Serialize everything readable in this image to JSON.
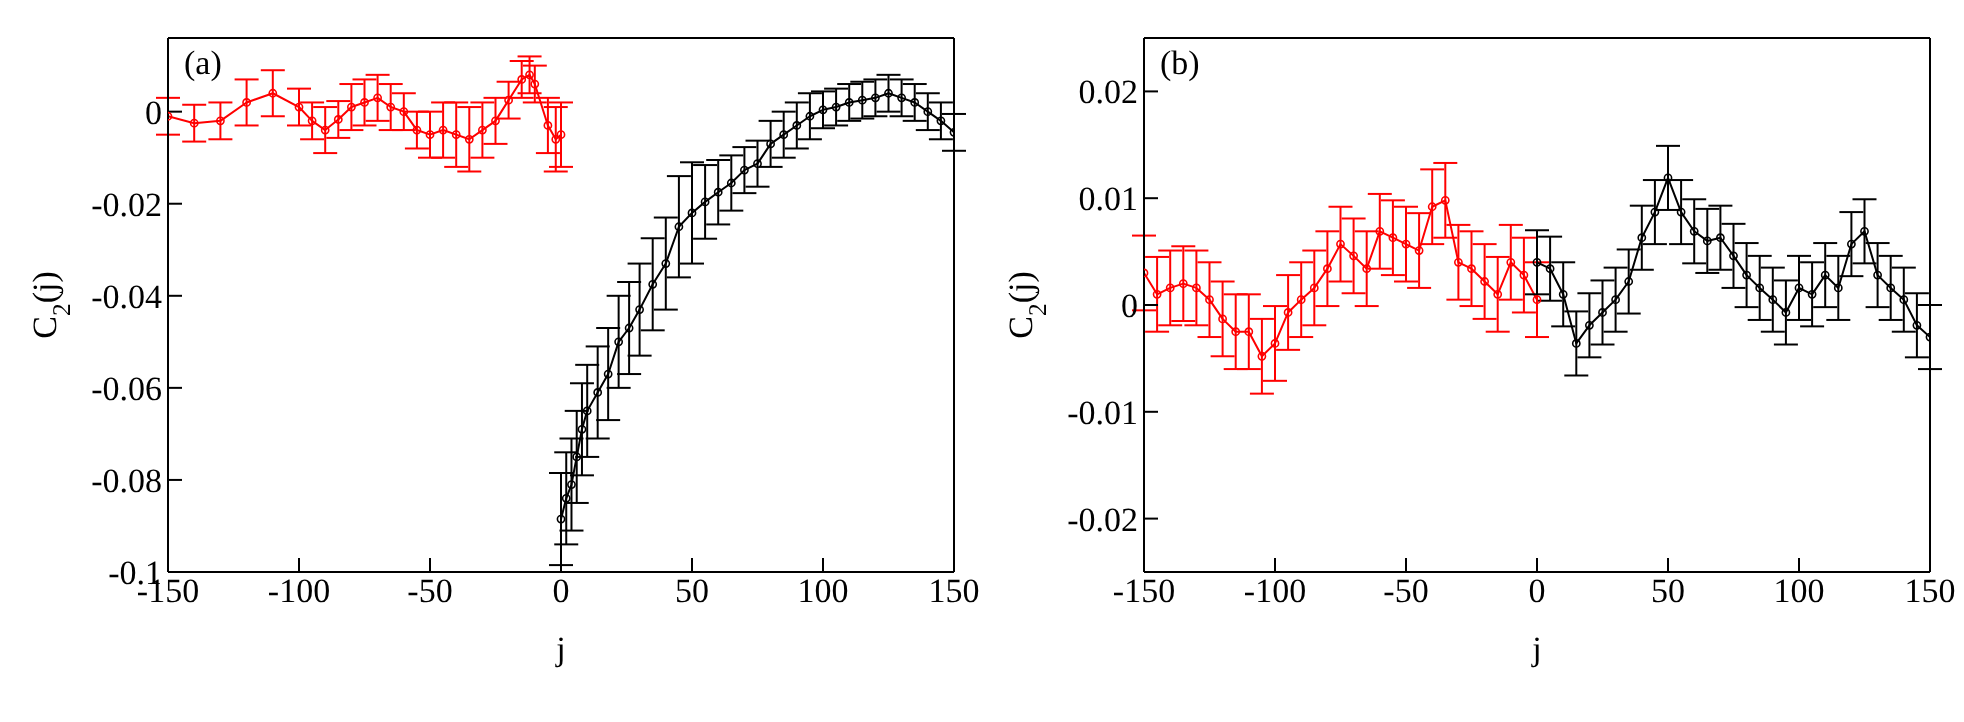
{
  "chart_data": [
    {
      "type": "line",
      "xlabel": "j",
      "ylabel": "C$_{2}$(j)",
      "annotations": [
        "(a)"
      ],
      "xlim": [
        -150,
        150
      ],
      "xticks": [
        -150,
        -100,
        -50,
        0,
        50,
        100,
        150
      ],
      "ylim": [
        -0.1,
        0.016
      ],
      "yticks": [
        -0.1,
        -0.08,
        -0.06,
        -0.04,
        -0.02,
        0
      ],
      "marker": "circle",
      "line_style": "solid",
      "series": [
        {
          "color": "#ff0000",
          "x": [
            -150,
            -140,
            -130,
            -120,
            -110,
            -100,
            -95,
            -90,
            -85,
            -80,
            -75,
            -70,
            -65,
            -60,
            -55,
            -50,
            -45,
            -40,
            -35,
            -30,
            -25,
            -20,
            -15,
            -12,
            -10,
            -5,
            -2,
            0
          ],
          "values": [
            -0.001,
            -0.0025,
            -0.002,
            0.002,
            0.004,
            0.001,
            -0.002,
            -0.004,
            -0.0017,
            0.001,
            0.002,
            0.003,
            0.001,
            0,
            -0.004,
            -0.005,
            -0.004,
            -0.005,
            -0.006,
            -0.004,
            -0.002,
            0.0025,
            0.007,
            0.008,
            0.006,
            -0.003,
            -0.006,
            -0.005
          ],
          "errors": [
            0.004,
            0.004,
            0.004,
            0.005,
            0.005,
            0.004,
            0.004,
            0.005,
            0.004,
            0.005,
            0.005,
            0.005,
            0.005,
            0.004,
            0.004,
            0.005,
            0.006,
            0.007,
            0.007,
            0.006,
            0.005,
            0.004,
            0.004,
            0.004,
            0.004,
            0.006,
            0.007,
            0.007
          ]
        },
        {
          "color": "#000000",
          "x": [
            0,
            2,
            4,
            6,
            8,
            10,
            14,
            18,
            22,
            26,
            30,
            35,
            40,
            45,
            50,
            55,
            60,
            65,
            70,
            75,
            80,
            85,
            90,
            95,
            100,
            105,
            110,
            115,
            120,
            125,
            130,
            135,
            140,
            145,
            150
          ],
          "values": [
            -0.0885,
            -0.084,
            -0.081,
            -0.075,
            -0.069,
            -0.065,
            -0.061,
            -0.057,
            -0.05,
            -0.047,
            -0.043,
            -0.0375,
            -0.033,
            -0.025,
            -0.022,
            -0.0196,
            -0.0175,
            -0.0155,
            -0.0127,
            -0.0113,
            -0.007,
            -0.005,
            -0.003,
            -0.001,
            0.0004,
            0.001,
            0.002,
            0.0025,
            0.003,
            0.004,
            0.003,
            0.002,
            0,
            -0.002,
            -0.0045
          ],
          "errors": [
            0.01,
            0.01,
            0.01,
            0.01,
            0.01,
            0.01,
            0.01,
            0.01,
            0.01,
            0.01,
            0.01,
            0.01,
            0.01,
            0.011,
            0.011,
            0.008,
            0.007,
            0.006,
            0.005,
            0.005,
            0.005,
            0.005,
            0.005,
            0.005,
            0.004,
            0.004,
            0.004,
            0.004,
            0.004,
            0.004,
            0.004,
            0.004,
            0.004,
            0.004,
            0.004
          ]
        }
      ]
    },
    {
      "type": "line",
      "xlabel": "j",
      "ylabel": "C$_{2}$(j)",
      "annotations": [
        "(b)"
      ],
      "xlim": [
        -150,
        150
      ],
      "xticks": [
        -150,
        -100,
        -50,
        0,
        50,
        100,
        150
      ],
      "ylim": [
        -0.025,
        0.025
      ],
      "yticks": [
        -0.02,
        -0.01,
        0,
        0.01,
        0.02
      ],
      "marker": "circle",
      "line_style": "solid",
      "series": [
        {
          "color": "#ff0000",
          "x": [
            -150,
            -145,
            -140,
            -135,
            -130,
            -125,
            -120,
            -115,
            -110,
            -105,
            -100,
            -95,
            -90,
            -85,
            -80,
            -75,
            -70,
            -65,
            -60,
            -55,
            -50,
            -45,
            -40,
            -35,
            -30,
            -25,
            -20,
            -15,
            -10,
            -5,
            0
          ],
          "values": [
            0.003,
            0.001,
            0.0016,
            0.002,
            0.0016,
            0.0005,
            -0.0013,
            -0.0025,
            -0.0025,
            -0.0048,
            -0.0036,
            -0.0007,
            0.0005,
            0.0016,
            0.0034,
            0.0057,
            0.0046,
            0.0034,
            0.0069,
            0.0063,
            0.0057,
            0.0051,
            0.0092,
            0.0098,
            0.004,
            0.0034,
            0.0022,
            0.001,
            0.004,
            0.0028,
            0.0005
          ],
          "errors": [
            0.0035,
            0.0035,
            0.0035,
            0.0035,
            0.0035,
            0.0035,
            0.0035,
            0.0035,
            0.0035,
            0.0035,
            0.0035,
            0.0035,
            0.0035,
            0.0035,
            0.0035,
            0.0035,
            0.0035,
            0.0035,
            0.0035,
            0.0035,
            0.0035,
            0.0035,
            0.0035,
            0.0035,
            0.0035,
            0.0035,
            0.0035,
            0.0035,
            0.0035,
            0.0035,
            0.0035
          ]
        },
        {
          "color": "#000000",
          "x": [
            0,
            5,
            10,
            15,
            20,
            25,
            30,
            35,
            40,
            45,
            50,
            55,
            60,
            65,
            70,
            75,
            80,
            85,
            90,
            95,
            100,
            105,
            110,
            115,
            120,
            125,
            130,
            135,
            140,
            145,
            150
          ],
          "values": [
            0.004,
            0.0034,
            0.001,
            -0.0036,
            -0.0019,
            -0.0007,
            0.0005,
            0.0022,
            0.0063,
            0.0087,
            0.0119,
            0.0087,
            0.0069,
            0.006,
            0.0063,
            0.0046,
            0.0028,
            0.0016,
            0.0005,
            -0.0007,
            0.0016,
            0.001,
            0.0028,
            0.0016,
            0.0057,
            0.0069,
            0.0028,
            0.0016,
            0.0005,
            -0.0019,
            -0.003
          ],
          "errors": [
            0.003,
            0.003,
            0.003,
            0.003,
            0.003,
            0.003,
            0.003,
            0.003,
            0.003,
            0.003,
            0.003,
            0.003,
            0.003,
            0.003,
            0.003,
            0.003,
            0.003,
            0.003,
            0.003,
            0.003,
            0.003,
            0.003,
            0.003,
            0.003,
            0.003,
            0.003,
            0.003,
            0.003,
            0.003,
            0.003,
            0.003
          ]
        }
      ]
    }
  ]
}
